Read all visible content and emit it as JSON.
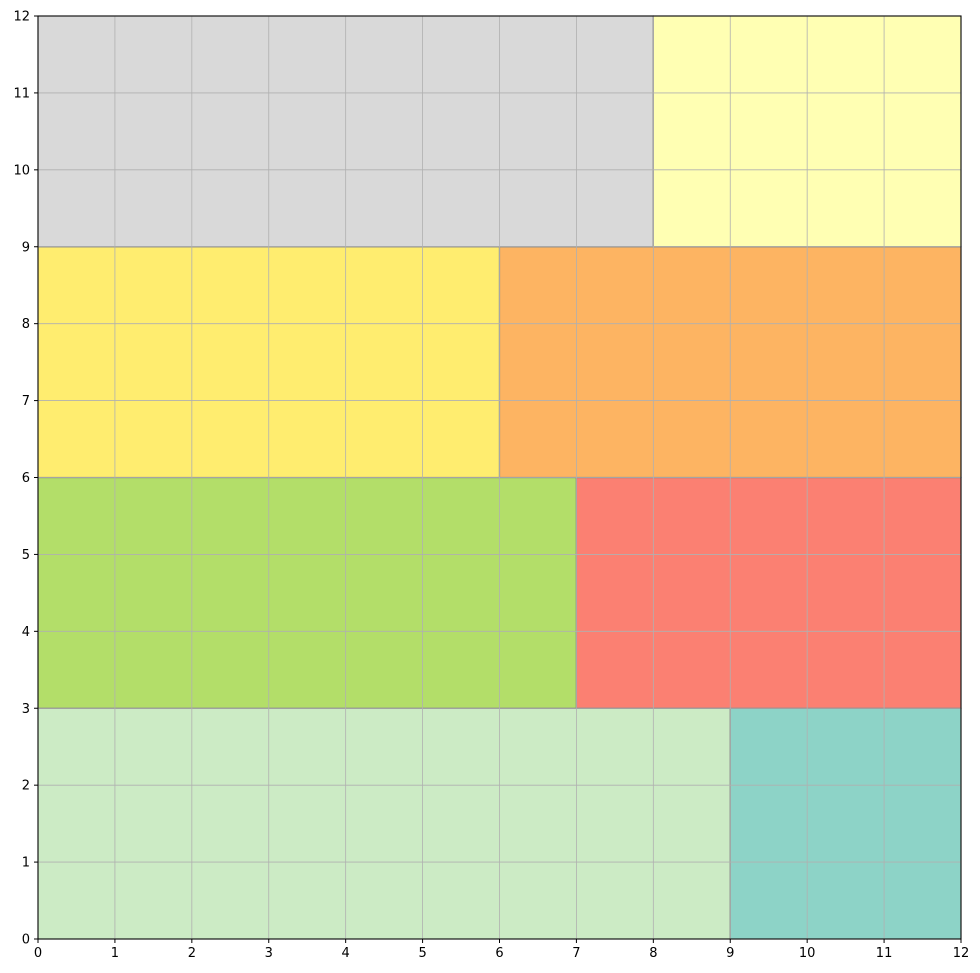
{
  "chart_data": {
    "type": "heatmap",
    "title": "",
    "xlabel": "",
    "ylabel": "",
    "xlim": [
      0,
      12
    ],
    "ylim": [
      0,
      12
    ],
    "grid": true,
    "x_ticks": [
      "0",
      "1",
      "2",
      "3",
      "4",
      "5",
      "6",
      "7",
      "8",
      "9",
      "10",
      "11",
      "12"
    ],
    "y_ticks": [
      "0",
      "1",
      "2",
      "3",
      "4",
      "5",
      "6",
      "7",
      "8",
      "9",
      "10",
      "11",
      "12"
    ],
    "rectangles": [
      {
        "x0": 0,
        "y0": 0,
        "x1": 9,
        "y1": 3,
        "color": "#ccebc5"
      },
      {
        "x0": 9,
        "y0": 0,
        "x1": 12,
        "y1": 3,
        "color": "#8dd3c7"
      },
      {
        "x0": 0,
        "y0": 3,
        "x1": 7,
        "y1": 6,
        "color": "#b3de69"
      },
      {
        "x0": 7,
        "y0": 3,
        "x1": 12,
        "y1": 6,
        "color": "#fb8072"
      },
      {
        "x0": 0,
        "y0": 6,
        "x1": 6,
        "y1": 9,
        "color": "#ffed6f"
      },
      {
        "x0": 6,
        "y0": 6,
        "x1": 12,
        "y1": 9,
        "color": "#fdb462"
      },
      {
        "x0": 0,
        "y0": 9,
        "x1": 8,
        "y1": 12,
        "color": "#d9d9d9"
      },
      {
        "x0": 8,
        "y0": 9,
        "x1": 12,
        "y1": 12,
        "color": "#ffffb3"
      }
    ]
  }
}
